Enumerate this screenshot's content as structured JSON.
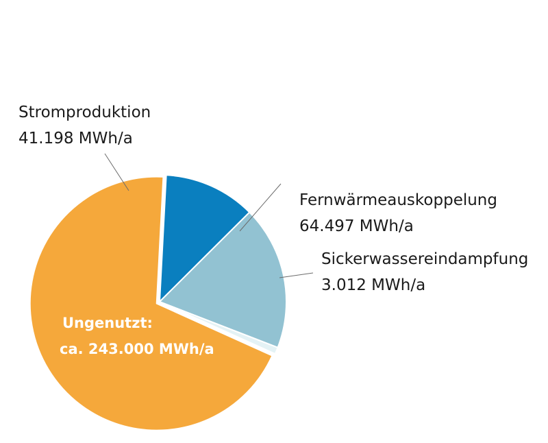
{
  "chart_data": {
    "type": "pie",
    "slices": [
      {
        "name": "Stromproduktion",
        "value": 41198,
        "value_label": "41.198 MWh/a",
        "color": "#0a7fbf"
      },
      {
        "name": "Fernwärmeauskoppelung",
        "value": 64497,
        "value_label": "64.497 MWh/a",
        "color": "#92c2d2"
      },
      {
        "name": "Sickerwassereindampfung",
        "value": 3012,
        "value_label": "3.012 MWh/a",
        "color": "#e4f2f5"
      },
      {
        "name": "Ungenutzt:",
        "value": 243000,
        "value_label": "ca. 243.000 MWh/a",
        "color": "#f5a83b",
        "exploded": true
      }
    ],
    "unit": "MWh/a",
    "colors": {
      "separator": "#ffffff",
      "label_text": "#1a1a1a",
      "inner_label_text": "#ffffff",
      "leader_line": "#6b6b6b"
    }
  }
}
